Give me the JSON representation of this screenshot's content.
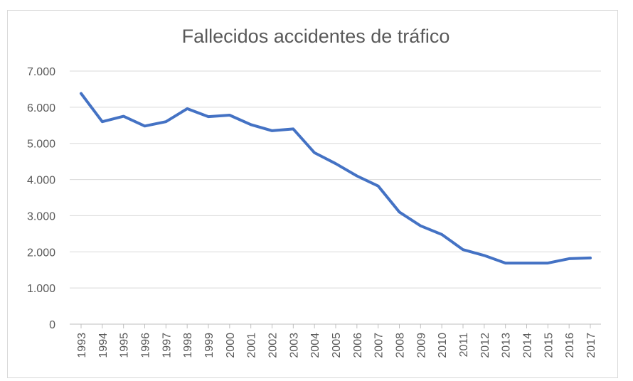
{
  "chart_data": {
    "type": "line",
    "title": "Fallecidos accidentes de tráfico",
    "xlabel": "",
    "ylabel": "",
    "ylim": [
      0,
      7000
    ],
    "yticks": [
      "0",
      "1.000",
      "2.000",
      "3.000",
      "4.000",
      "5.000",
      "6.000",
      "7.000"
    ],
    "yticks_values": [
      0,
      1000,
      2000,
      3000,
      4000,
      5000,
      6000,
      7000
    ],
    "grid": true,
    "legend": "none",
    "categories": [
      "1993",
      "1994",
      "1995",
      "1996",
      "1997",
      "1998",
      "1999",
      "2000",
      "2001",
      "2002",
      "2003",
      "2004",
      "2005",
      "2006",
      "2007",
      "2008",
      "2009",
      "2010",
      "2011",
      "2012",
      "2013",
      "2014",
      "2015",
      "2016",
      "2017"
    ],
    "series": [
      {
        "color": "#4472c4",
        "values": [
          6380,
          5600,
          5750,
          5480,
          5600,
          5960,
          5740,
          5780,
          5520,
          5350,
          5400,
          4740,
          4440,
          4100,
          3820,
          3100,
          2720,
          2480,
          2060,
          1900,
          1690,
          1690,
          1690,
          1810,
          1830
        ]
      }
    ]
  }
}
